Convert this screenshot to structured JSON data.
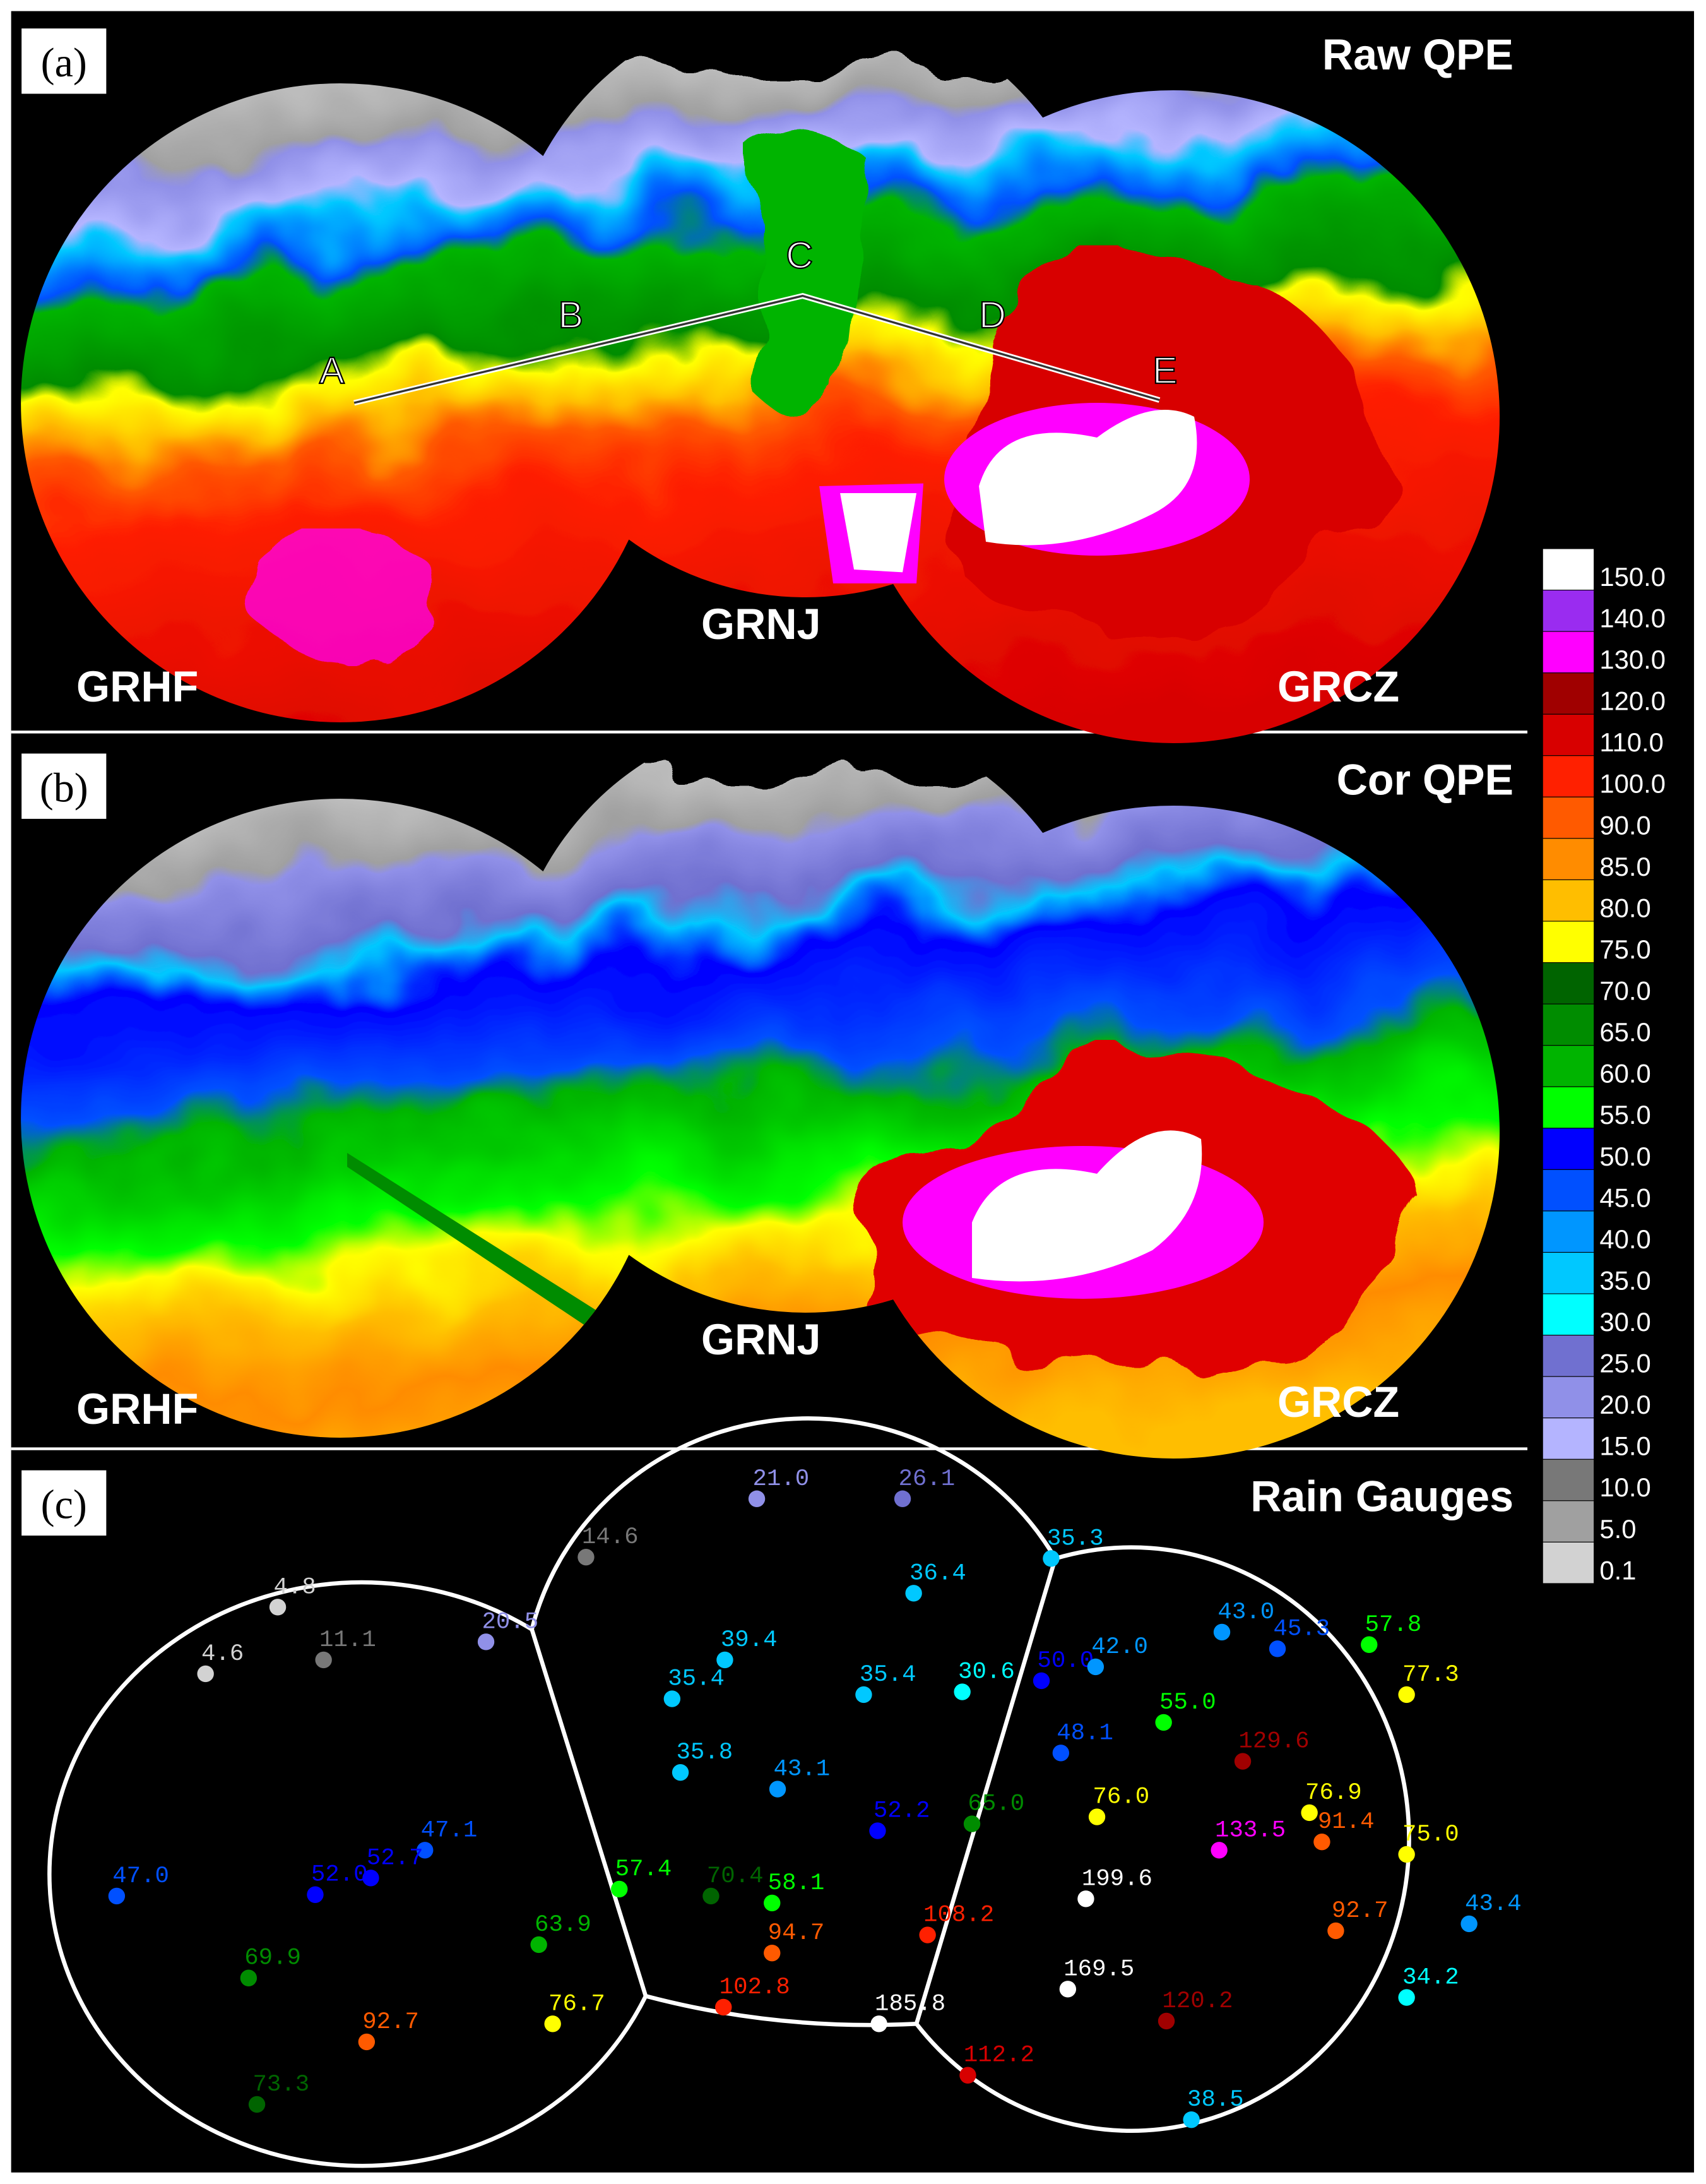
{
  "panels": [
    {
      "label": "(a)",
      "title": "Raw QPE",
      "radars": [
        "GRHF",
        "GRNJ",
        "GRCZ"
      ],
      "points": [
        "A",
        "B",
        "C",
        "D",
        "E"
      ]
    },
    {
      "label": "(b)",
      "title": "Cor QPE",
      "radars": [
        "GRHF",
        "GRNJ",
        "GRCZ"
      ]
    },
    {
      "label": "(c)",
      "title": "Rain Gauges",
      "gauges": [
        "4.8",
        "4.6",
        "11.1",
        "20.5",
        "14.6",
        "21.0",
        "26.1",
        "35.3",
        "36.4",
        "39.4",
        "35.4",
        "35.4",
        "30.6",
        "50.0",
        "42.0",
        "43.0",
        "45.3",
        "57.8",
        "77.3",
        "55.0",
        "48.1",
        "129.6",
        "35.8",
        "43.1",
        "76.0",
        "76.9",
        "133.5",
        "91.4",
        "75.0",
        "52.2",
        "65.0",
        "47.1",
        "52.7",
        "52.0",
        "47.0",
        "57.4",
        "70.4",
        "58.1",
        "199.6",
        "63.9",
        "94.7",
        "108.2",
        "92.7",
        "43.4",
        "69.9",
        "169.5",
        "34.2",
        "120.2",
        "92.7",
        "76.7",
        "102.8",
        "185.8",
        "112.2",
        "73.3",
        "38.5"
      ]
    }
  ],
  "legend": [
    {
      "label": "150.0",
      "color": "#ffffff"
    },
    {
      "label": "140.0",
      "color": "#9a2cf0"
    },
    {
      "label": "130.0",
      "color": "#ff00ff"
    },
    {
      "label": "120.0",
      "color": "#a00000"
    },
    {
      "label": "110.0",
      "color": "#d80000"
    },
    {
      "label": "100.0",
      "color": "#ff2000"
    },
    {
      "label": "90.0",
      "color": "#ff5a00"
    },
    {
      "label": "85.0",
      "color": "#ff8c00"
    },
    {
      "label": "80.0",
      "color": "#ffbe00"
    },
    {
      "label": "75.0",
      "color": "#ffff00"
    },
    {
      "label": "70.0",
      "color": "#006400"
    },
    {
      "label": "65.0",
      "color": "#008c00"
    },
    {
      "label": "60.0",
      "color": "#00b400"
    },
    {
      "label": "55.0",
      "color": "#00ff00"
    },
    {
      "label": "50.0",
      "color": "#0000ff"
    },
    {
      "label": "45.0",
      "color": "#0050ff"
    },
    {
      "label": "40.0",
      "color": "#0096ff"
    },
    {
      "label": "35.0",
      "color": "#00c8ff"
    },
    {
      "label": "30.0",
      "color": "#00ffff"
    },
    {
      "label": "25.0",
      "color": "#7070d0"
    },
    {
      "label": "20.0",
      "color": "#9090e8"
    },
    {
      "label": "15.0",
      "color": "#b4b4ff"
    },
    {
      "label": "10.0",
      "color": "#787878"
    },
    {
      "label": "5.0",
      "color": "#a0a0a0"
    },
    {
      "label": "0.1",
      "color": "#d2d2d2"
    }
  ]
}
